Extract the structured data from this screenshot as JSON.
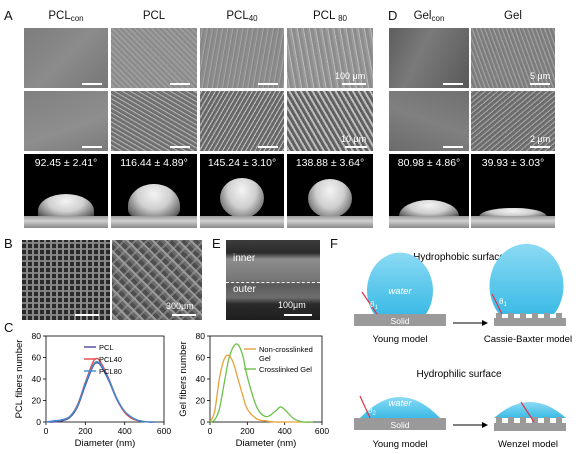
{
  "panels": {
    "A": "A",
    "B": "B",
    "C": "C",
    "D": "D",
    "E": "E",
    "F": "F"
  },
  "panelA": {
    "columns": [
      {
        "main": "PCL",
        "sub": "con"
      },
      {
        "main": "PCL",
        "sub": ""
      },
      {
        "main": "PCL",
        "sub": "40"
      },
      {
        "main": "PCL ",
        "sub": "80"
      }
    ],
    "scale_top": "100 μm",
    "scale_mid": "10 μm",
    "angles": [
      "92.45 ± 2.41°",
      "116.44 ± 4.89°",
      "145.24 ± 3.10°",
      "138.88 ± 3.64°"
    ]
  },
  "panelD": {
    "columns": [
      {
        "main": "Gel",
        "sub": "con"
      },
      {
        "main": "Gel",
        "sub": ""
      }
    ],
    "scale_top": "5 μm",
    "scale_mid": "2 μm",
    "angles": [
      "80.98 ± 4.86°",
      "39.93 ± 3.03°"
    ]
  },
  "panelB": {
    "scale": "300μm"
  },
  "panelE": {
    "inner": "inner",
    "outer": "outer",
    "scale": "100μm"
  },
  "panelF": {
    "hydrophobic_title": "Hydrophobic surface",
    "hydrophilic_title": "Hydrophilic surface",
    "water": "water",
    "solid": "Solid",
    "theta1": "θ",
    "theta1_sub": "1",
    "theta2": "θ",
    "theta2_sub": "1",
    "theta3": "θ",
    "theta3_sub": "2",
    "young1": "Young model",
    "cassie": "Cassie-Baxter model",
    "young2": "Young model",
    "wenzel": "Wenzel model"
  },
  "colors": {
    "pcl": "#4a4a9a",
    "pcl40": "#e8434b",
    "pcl80": "#3a8fd6",
    "noncross": "#e7a23a",
    "cross": "#6cc24a",
    "water": "#55c8ec",
    "solid": "#9a9a9a"
  },
  "chart_data": [
    {
      "type": "line",
      "xlabel": "Diameter (nm)",
      "ylabel": "PCL fibers number",
      "xlim": [
        0,
        600
      ],
      "ylim": [
        0,
        80
      ],
      "xticks": [
        "0",
        "200",
        "400",
        "600"
      ],
      "yticks": [
        "0",
        "20",
        "40",
        "60",
        "80"
      ],
      "legend_position": "top-right",
      "series": [
        {
          "name": "PCL",
          "color": "#4a4a9a",
          "x": [
            0,
            40,
            80,
            120,
            160,
            200,
            240,
            260,
            280,
            320,
            360,
            400,
            440,
            480,
            520,
            560
          ],
          "y": [
            0,
            0,
            1,
            4,
            14,
            34,
            52,
            55,
            52,
            38,
            21,
            9,
            3,
            1,
            0,
            0
          ]
        },
        {
          "name": "PCL40",
          "color": "#e8434b",
          "x": [
            0,
            40,
            80,
            120,
            160,
            200,
            240,
            260,
            280,
            320,
            360,
            400,
            440,
            480,
            520,
            560
          ],
          "y": [
            0,
            1,
            2,
            5,
            16,
            37,
            56,
            59,
            55,
            40,
            22,
            9,
            3,
            1,
            0,
            0
          ]
        },
        {
          "name": "PCL80",
          "color": "#3a8fd6",
          "x": [
            0,
            40,
            80,
            120,
            160,
            200,
            240,
            260,
            280,
            320,
            360,
            400,
            440,
            480,
            520,
            560
          ],
          "y": [
            0,
            1,
            2,
            5,
            15,
            36,
            53,
            56,
            53,
            39,
            22,
            10,
            4,
            1,
            0,
            0
          ]
        }
      ]
    },
    {
      "type": "line",
      "xlabel": "Diameter (nm)",
      "ylabel": "Gel fibers number",
      "xlim": [
        0,
        600
      ],
      "ylim": [
        0,
        80
      ],
      "xticks": [
        "0",
        "200",
        "400",
        "600"
      ],
      "yticks": [
        "0",
        "20",
        "40",
        "60",
        "80"
      ],
      "legend_position": "top-right",
      "series": [
        {
          "name": "Non-crosslinked Gel",
          "color": "#e7a23a",
          "x": [
            0,
            25,
            50,
            75,
            100,
            125,
            150,
            175,
            200,
            250,
            300,
            350,
            400,
            450,
            500,
            550
          ],
          "y": [
            0,
            10,
            40,
            58,
            62,
            55,
            40,
            25,
            12,
            3,
            1,
            0,
            0,
            0,
            0,
            0
          ]
        },
        {
          "name": "Crosslinked Gel",
          "color": "#6cc24a",
          "x": [
            0,
            25,
            50,
            75,
            100,
            125,
            150,
            175,
            200,
            250,
            300,
            350,
            380,
            420,
            450,
            500,
            550
          ],
          "y": [
            0,
            2,
            12,
            35,
            58,
            70,
            72,
            62,
            42,
            14,
            5,
            10,
            14,
            8,
            3,
            0,
            0
          ]
        }
      ]
    }
  ]
}
